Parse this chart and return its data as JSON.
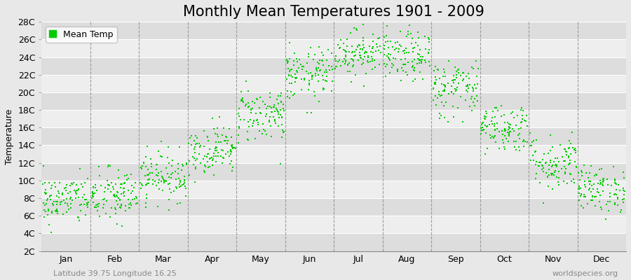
{
  "title": "Monthly Mean Temperatures 1901 - 2009",
  "ylabel": "Temperature",
  "xlabel_bottom_left": "Latitude 39.75 Longitude 16.25",
  "xlabel_bottom_right": "worldspecies.org",
  "legend_label": "Mean Temp",
  "dot_color": "#00CC00",
  "bg_color": "#E8E8E8",
  "plot_bg_color_light": "#EEEEEE",
  "plot_bg_color_dark": "#DDDDDD",
  "grid_color": "#FFFFFF",
  "dashed_color": "#888888",
  "ylim": [
    2,
    28
  ],
  "yticks": [
    2,
    4,
    6,
    8,
    10,
    12,
    14,
    16,
    18,
    20,
    22,
    24,
    26,
    28
  ],
  "ytick_labels": [
    "2C",
    "4C",
    "6C",
    "8C",
    "10C",
    "12C",
    "14C",
    "16C",
    "18C",
    "20C",
    "22C",
    "24C",
    "26C",
    "28C"
  ],
  "month_names": [
    "Jan",
    "Feb",
    "Mar",
    "Apr",
    "May",
    "Jun",
    "Jul",
    "Aug",
    "Sep",
    "Oct",
    "Nov",
    "Dec"
  ],
  "monthly_means": [
    7.8,
    8.2,
    10.5,
    13.5,
    17.5,
    22.0,
    24.5,
    24.0,
    20.5,
    16.0,
    12.0,
    9.0
  ],
  "monthly_std": [
    1.4,
    1.6,
    1.4,
    1.4,
    1.6,
    1.5,
    1.3,
    1.4,
    1.7,
    1.4,
    1.6,
    1.3
  ],
  "n_years": 109,
  "title_fontsize": 15,
  "label_fontsize": 9,
  "tick_fontsize": 9
}
